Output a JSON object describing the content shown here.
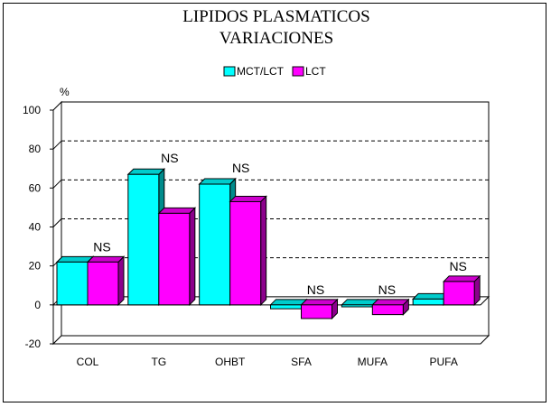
{
  "chart_data": {
    "type": "bar",
    "title": "LIPIDOS PLASMATICOS",
    "subtitle": "VARIACIONES",
    "ylabel": "%",
    "xlabel": "",
    "ylim": [
      -20,
      100
    ],
    "yticks": [
      100,
      80,
      60,
      40,
      20,
      0,
      -20
    ],
    "grid": "dashed horizontal",
    "legend": "top-center",
    "categories": [
      "COL",
      "TG",
      "OHBT",
      "SFA",
      "MUFA",
      "PUFA"
    ],
    "series": [
      {
        "name": "MCT/LCT",
        "color": "#00ffff",
        "values": [
          22,
          67,
          62,
          -2,
          -1,
          3
        ]
      },
      {
        "name": "LCT",
        "color": "#ff00ff",
        "values": [
          22,
          47,
          53,
          -7,
          -5,
          12
        ]
      }
    ],
    "annotations": [
      "NS",
      "NS",
      "NS",
      "NS",
      "NS",
      "NS"
    ]
  }
}
